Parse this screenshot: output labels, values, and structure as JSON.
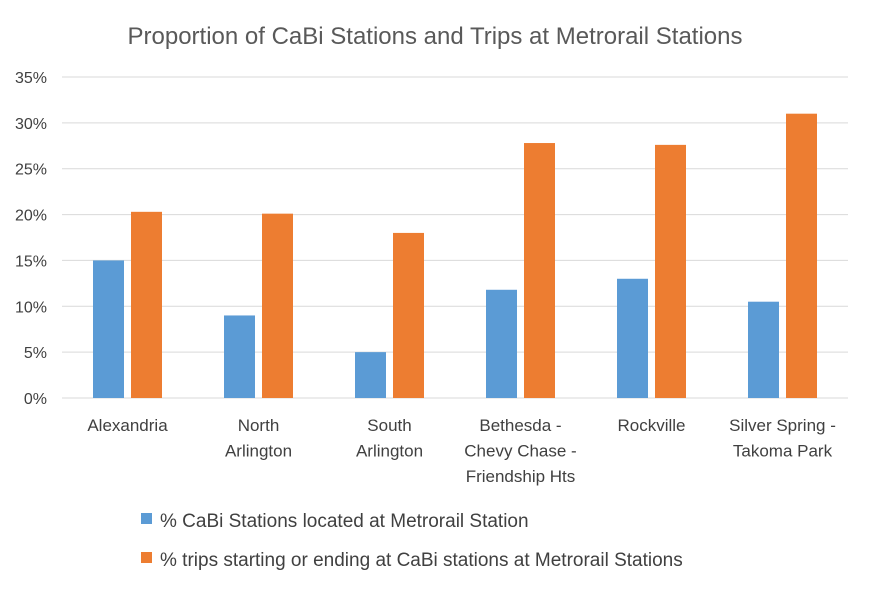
{
  "chart_data": {
    "type": "bar",
    "title": "Proportion of CaBi Stations and Trips at Metrorail Stations",
    "categories": [
      [
        "Alexandria"
      ],
      [
        "North",
        "Arlington"
      ],
      [
        "South",
        "Arlington"
      ],
      [
        "Bethesda -",
        "Chevy Chase -",
        "Friendship Hts"
      ],
      [
        "Rockville"
      ],
      [
        "Silver Spring -",
        "Takoma Park"
      ]
    ],
    "series": [
      {
        "name": "% CaBi Stations located at Metrorail Station",
        "color": "#5b9bd5",
        "values": [
          15.0,
          9.0,
          5.0,
          11.8,
          13.0,
          10.5
        ]
      },
      {
        "name": "% trips starting or ending at CaBi stations at Metrorail Stations",
        "color": "#ed7d31",
        "values": [
          20.3,
          20.1,
          18.0,
          27.8,
          27.6,
          31.0
        ]
      }
    ],
    "ylim": [
      0,
      35
    ],
    "yticks": [
      "0%",
      "5%",
      "10%",
      "15%",
      "20%",
      "25%",
      "30%",
      "35%"
    ],
    "grid": true,
    "legend_position": "bottom"
  }
}
